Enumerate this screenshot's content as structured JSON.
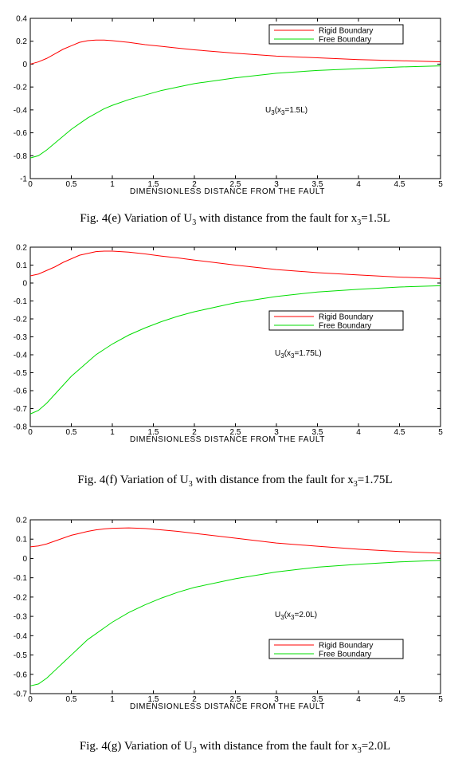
{
  "colors": {
    "rigid": "#ff0000",
    "free": "#00dd00",
    "axis": "#000000"
  },
  "chart_data": [
    {
      "type": "line",
      "id": "fig4e",
      "xlabel": "DIMENSIONLESS DISTANCE FROM THE FAULT",
      "xlim": [
        0,
        5
      ],
      "ylim": [
        -1,
        0.4
      ],
      "xticks": [
        "0",
        "0.5",
        "1",
        "1.5",
        "2",
        "2.5",
        "3",
        "3.5",
        "4",
        "4.5",
        "5"
      ],
      "yticks": [
        "0.4",
        "0.2",
        "0",
        "-0.2",
        "-0.4",
        "-0.6",
        "-0.8",
        "-1"
      ],
      "annotation": {
        "main": "U",
        "sub1": "3",
        "mid": "(x",
        "sub2": "3",
        "rest": "=1.5L)"
      },
      "legend_position": "top-right",
      "series": [
        {
          "name": "Rigid Boundary",
          "color": "#ff0000",
          "x": [
            0,
            0.1,
            0.2,
            0.3,
            0.4,
            0.5,
            0.6,
            0.7,
            0.8,
            0.9,
            1.0,
            1.2,
            1.4,
            1.6,
            1.8,
            2.0,
            2.5,
            3.0,
            3.5,
            4.0,
            4.5,
            5.0
          ],
          "y": [
            0.0,
            0.02,
            0.05,
            0.09,
            0.13,
            0.16,
            0.19,
            0.205,
            0.21,
            0.21,
            0.205,
            0.19,
            0.17,
            0.155,
            0.14,
            0.125,
            0.095,
            0.07,
            0.055,
            0.04,
            0.03,
            0.02
          ]
        },
        {
          "name": "Free Boundary",
          "color": "#00dd00",
          "x": [
            0,
            0.1,
            0.2,
            0.3,
            0.4,
            0.5,
            0.6,
            0.7,
            0.8,
            0.9,
            1.0,
            1.2,
            1.4,
            1.6,
            1.8,
            2.0,
            2.5,
            3.0,
            3.5,
            4.0,
            4.5,
            5.0
          ],
          "y": [
            -0.82,
            -0.8,
            -0.75,
            -0.69,
            -0.63,
            -0.57,
            -0.52,
            -0.47,
            -0.43,
            -0.39,
            -0.36,
            -0.31,
            -0.27,
            -0.23,
            -0.2,
            -0.17,
            -0.12,
            -0.08,
            -0.055,
            -0.04,
            -0.025,
            -0.015
          ]
        }
      ]
    },
    {
      "type": "line",
      "id": "fig4f",
      "xlabel": "DIMENSIONLESS DISTANCE FROM THE FAULT",
      "xlim": [
        0,
        5
      ],
      "ylim": [
        -0.8,
        0.2
      ],
      "xticks": [
        "0",
        "0.5",
        "1",
        "1.5",
        "2",
        "2.5",
        "3",
        "3.5",
        "4",
        "4.5",
        "5"
      ],
      "yticks": [
        "0.2",
        "0.1",
        "0",
        "-0.1",
        "-0.2",
        "-0.3",
        "-0.4",
        "-0.5",
        "-0.6",
        "-0.7",
        "-0.8"
      ],
      "annotation": {
        "main": "U",
        "sub1": "3",
        "mid": "(x",
        "sub2": "3",
        "rest": "=1.75L)"
      },
      "legend_position": "middle-right",
      "series": [
        {
          "name": "Rigid Boundary",
          "color": "#ff0000",
          "x": [
            0,
            0.1,
            0.2,
            0.3,
            0.4,
            0.5,
            0.6,
            0.7,
            0.8,
            0.9,
            1.0,
            1.2,
            1.4,
            1.6,
            1.8,
            2.0,
            2.5,
            3.0,
            3.5,
            4.0,
            4.5,
            5.0
          ],
          "y": [
            0.04,
            0.05,
            0.07,
            0.09,
            0.115,
            0.135,
            0.155,
            0.165,
            0.175,
            0.178,
            0.178,
            0.172,
            0.162,
            0.15,
            0.14,
            0.128,
            0.1,
            0.075,
            0.058,
            0.045,
            0.033,
            0.025
          ]
        },
        {
          "name": "Free Boundary",
          "color": "#00dd00",
          "x": [
            0,
            0.1,
            0.2,
            0.3,
            0.4,
            0.5,
            0.6,
            0.7,
            0.8,
            0.9,
            1.0,
            1.2,
            1.4,
            1.6,
            1.8,
            2.0,
            2.5,
            3.0,
            3.5,
            4.0,
            4.5,
            5.0
          ],
          "y": [
            -0.73,
            -0.71,
            -0.67,
            -0.62,
            -0.57,
            -0.52,
            -0.48,
            -0.44,
            -0.4,
            -0.37,
            -0.34,
            -0.29,
            -0.25,
            -0.215,
            -0.185,
            -0.16,
            -0.11,
            -0.075,
            -0.05,
            -0.035,
            -0.022,
            -0.015
          ]
        }
      ]
    },
    {
      "type": "line",
      "id": "fig4g",
      "xlabel": "DIMENSIONLESS DISTANCE FROM THE FAULT",
      "xlim": [
        0,
        5
      ],
      "ylim": [
        -0.7,
        0.2
      ],
      "xticks": [
        "0",
        "0.5",
        "1",
        "1.5",
        "2",
        "2.5",
        "3",
        "3.5",
        "4",
        "4.5",
        "5"
      ],
      "yticks": [
        "0.2",
        "0.1",
        "0",
        "-0.1",
        "-0.2",
        "-0.3",
        "-0.4",
        "-0.5",
        "-0.6",
        "-0.7"
      ],
      "annotation": {
        "main": "U",
        "sub1": "3",
        "mid": "(x",
        "sub2": "3",
        "rest": "=2.0L)"
      },
      "legend_position": "lower-right",
      "series": [
        {
          "name": "Rigid Boundary",
          "color": "#ff0000",
          "x": [
            0,
            0.1,
            0.2,
            0.3,
            0.4,
            0.5,
            0.6,
            0.7,
            0.8,
            0.9,
            1.0,
            1.2,
            1.4,
            1.6,
            1.8,
            2.0,
            2.5,
            3.0,
            3.5,
            4.0,
            4.5,
            5.0
          ],
          "y": [
            0.06,
            0.065,
            0.075,
            0.09,
            0.105,
            0.12,
            0.13,
            0.14,
            0.148,
            0.153,
            0.156,
            0.158,
            0.155,
            0.148,
            0.14,
            0.13,
            0.105,
            0.08,
            0.063,
            0.048,
            0.036,
            0.027
          ]
        },
        {
          "name": "Free Boundary",
          "color": "#00dd00",
          "x": [
            0,
            0.1,
            0.2,
            0.3,
            0.4,
            0.5,
            0.6,
            0.7,
            0.8,
            0.9,
            1.0,
            1.2,
            1.4,
            1.6,
            1.8,
            2.0,
            2.5,
            3.0,
            3.5,
            4.0,
            4.5,
            5.0
          ],
          "y": [
            -0.66,
            -0.65,
            -0.62,
            -0.58,
            -0.54,
            -0.5,
            -0.46,
            -0.42,
            -0.39,
            -0.36,
            -0.33,
            -0.28,
            -0.24,
            -0.205,
            -0.175,
            -0.15,
            -0.105,
            -0.07,
            -0.045,
            -0.03,
            -0.018,
            -0.01
          ]
        }
      ]
    }
  ],
  "captions": [
    {
      "prefix": "Fig. 4(e) Variation of  U",
      "sub1": "3",
      "middle": " with  distance  from  the  fault  for  x",
      "sub2": "3",
      "suffix": "=1.5L"
    },
    {
      "prefix": "Fig. 4(f) Variation of  U",
      "sub1": "3",
      "middle": " with  distance  from  the  fault  for x",
      "sub2": "3",
      "suffix": "=1.75L"
    },
    {
      "prefix": "Fig. 4(g) Variation of  U",
      "sub1": "3",
      "middle": " with  distance  from  the  fault  for  x",
      "sub2": "3",
      "suffix": "=2.0L"
    }
  ]
}
